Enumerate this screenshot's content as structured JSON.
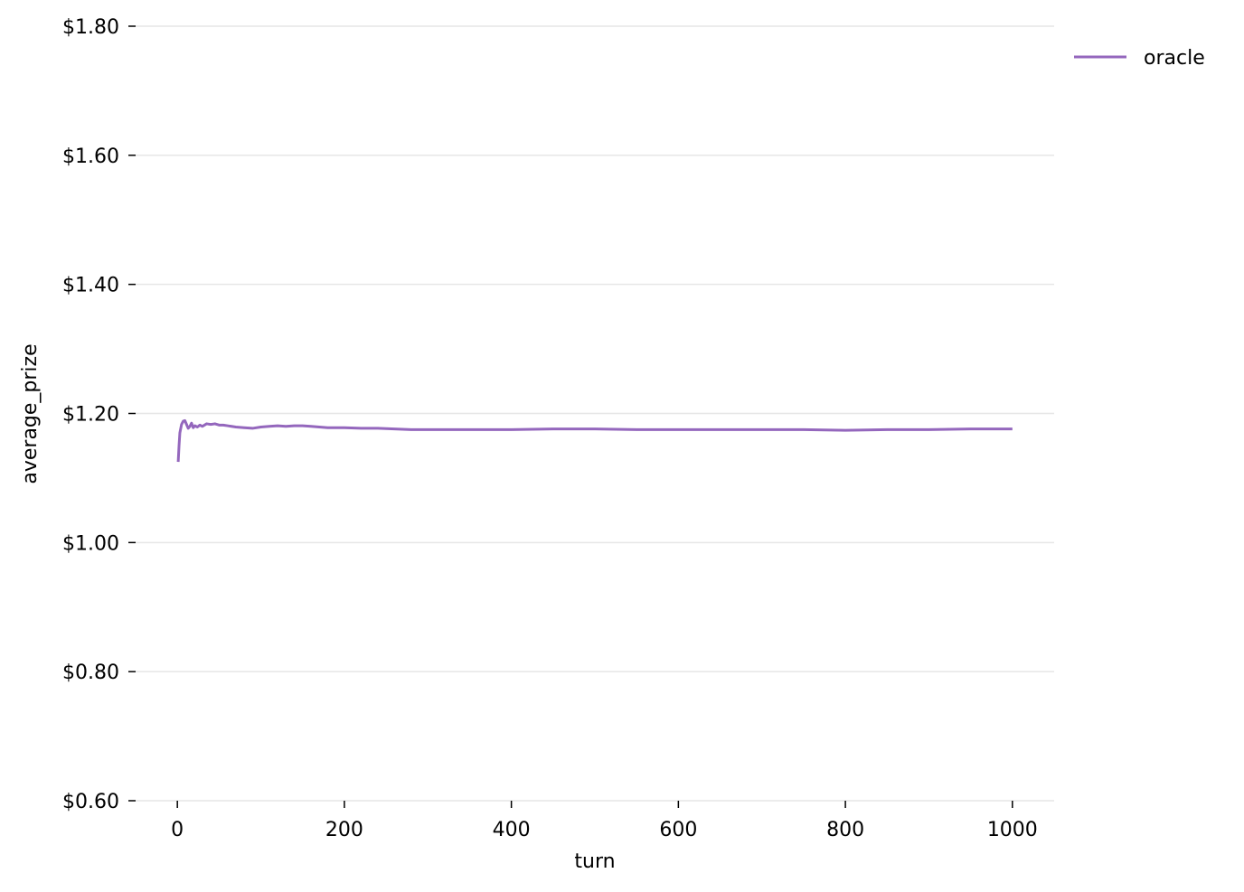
{
  "chart_data": {
    "type": "line",
    "title": "",
    "xlabel": "turn",
    "ylabel": "average_prize",
    "xlim": [
      -50,
      1050
    ],
    "ylim": [
      0.6,
      1.8
    ],
    "xticks": [
      0,
      200,
      400,
      600,
      800,
      1000
    ],
    "xtick_labels": [
      "0",
      "200",
      "400",
      "600",
      "800",
      "1000"
    ],
    "yticks": [
      0.6,
      0.8,
      1.0,
      1.2,
      1.4,
      1.6,
      1.8
    ],
    "ytick_labels": [
      "$0.60",
      "$0.80",
      "$1.00",
      "$1.20",
      "$1.40",
      "$1.60",
      "$1.80"
    ],
    "grid": "horizontal",
    "legend": "outside-top-right",
    "series": [
      {
        "name": "oracle",
        "color": "#9467bd",
        "x": [
          1,
          2,
          3,
          5,
          7,
          9,
          11,
          13,
          15,
          17,
          19,
          21,
          24,
          27,
          30,
          35,
          40,
          45,
          50,
          55,
          60,
          70,
          80,
          90,
          100,
          110,
          120,
          130,
          140,
          150,
          160,
          170,
          180,
          190,
          200,
          220,
          240,
          260,
          280,
          300,
          320,
          350,
          400,
          450,
          500,
          550,
          600,
          650,
          700,
          750,
          800,
          850,
          900,
          950,
          1000
        ],
        "y": [
          1.125,
          1.15,
          1.17,
          1.183,
          1.188,
          1.189,
          1.183,
          1.177,
          1.18,
          1.185,
          1.178,
          1.181,
          1.179,
          1.182,
          1.18,
          1.184,
          1.183,
          1.184,
          1.182,
          1.182,
          1.181,
          1.179,
          1.178,
          1.177,
          1.179,
          1.18,
          1.181,
          1.18,
          1.181,
          1.181,
          1.18,
          1.179,
          1.178,
          1.178,
          1.178,
          1.177,
          1.177,
          1.176,
          1.175,
          1.175,
          1.175,
          1.175,
          1.175,
          1.176,
          1.176,
          1.175,
          1.175,
          1.175,
          1.175,
          1.175,
          1.174,
          1.175,
          1.175,
          1.176,
          1.176
        ]
      }
    ]
  }
}
